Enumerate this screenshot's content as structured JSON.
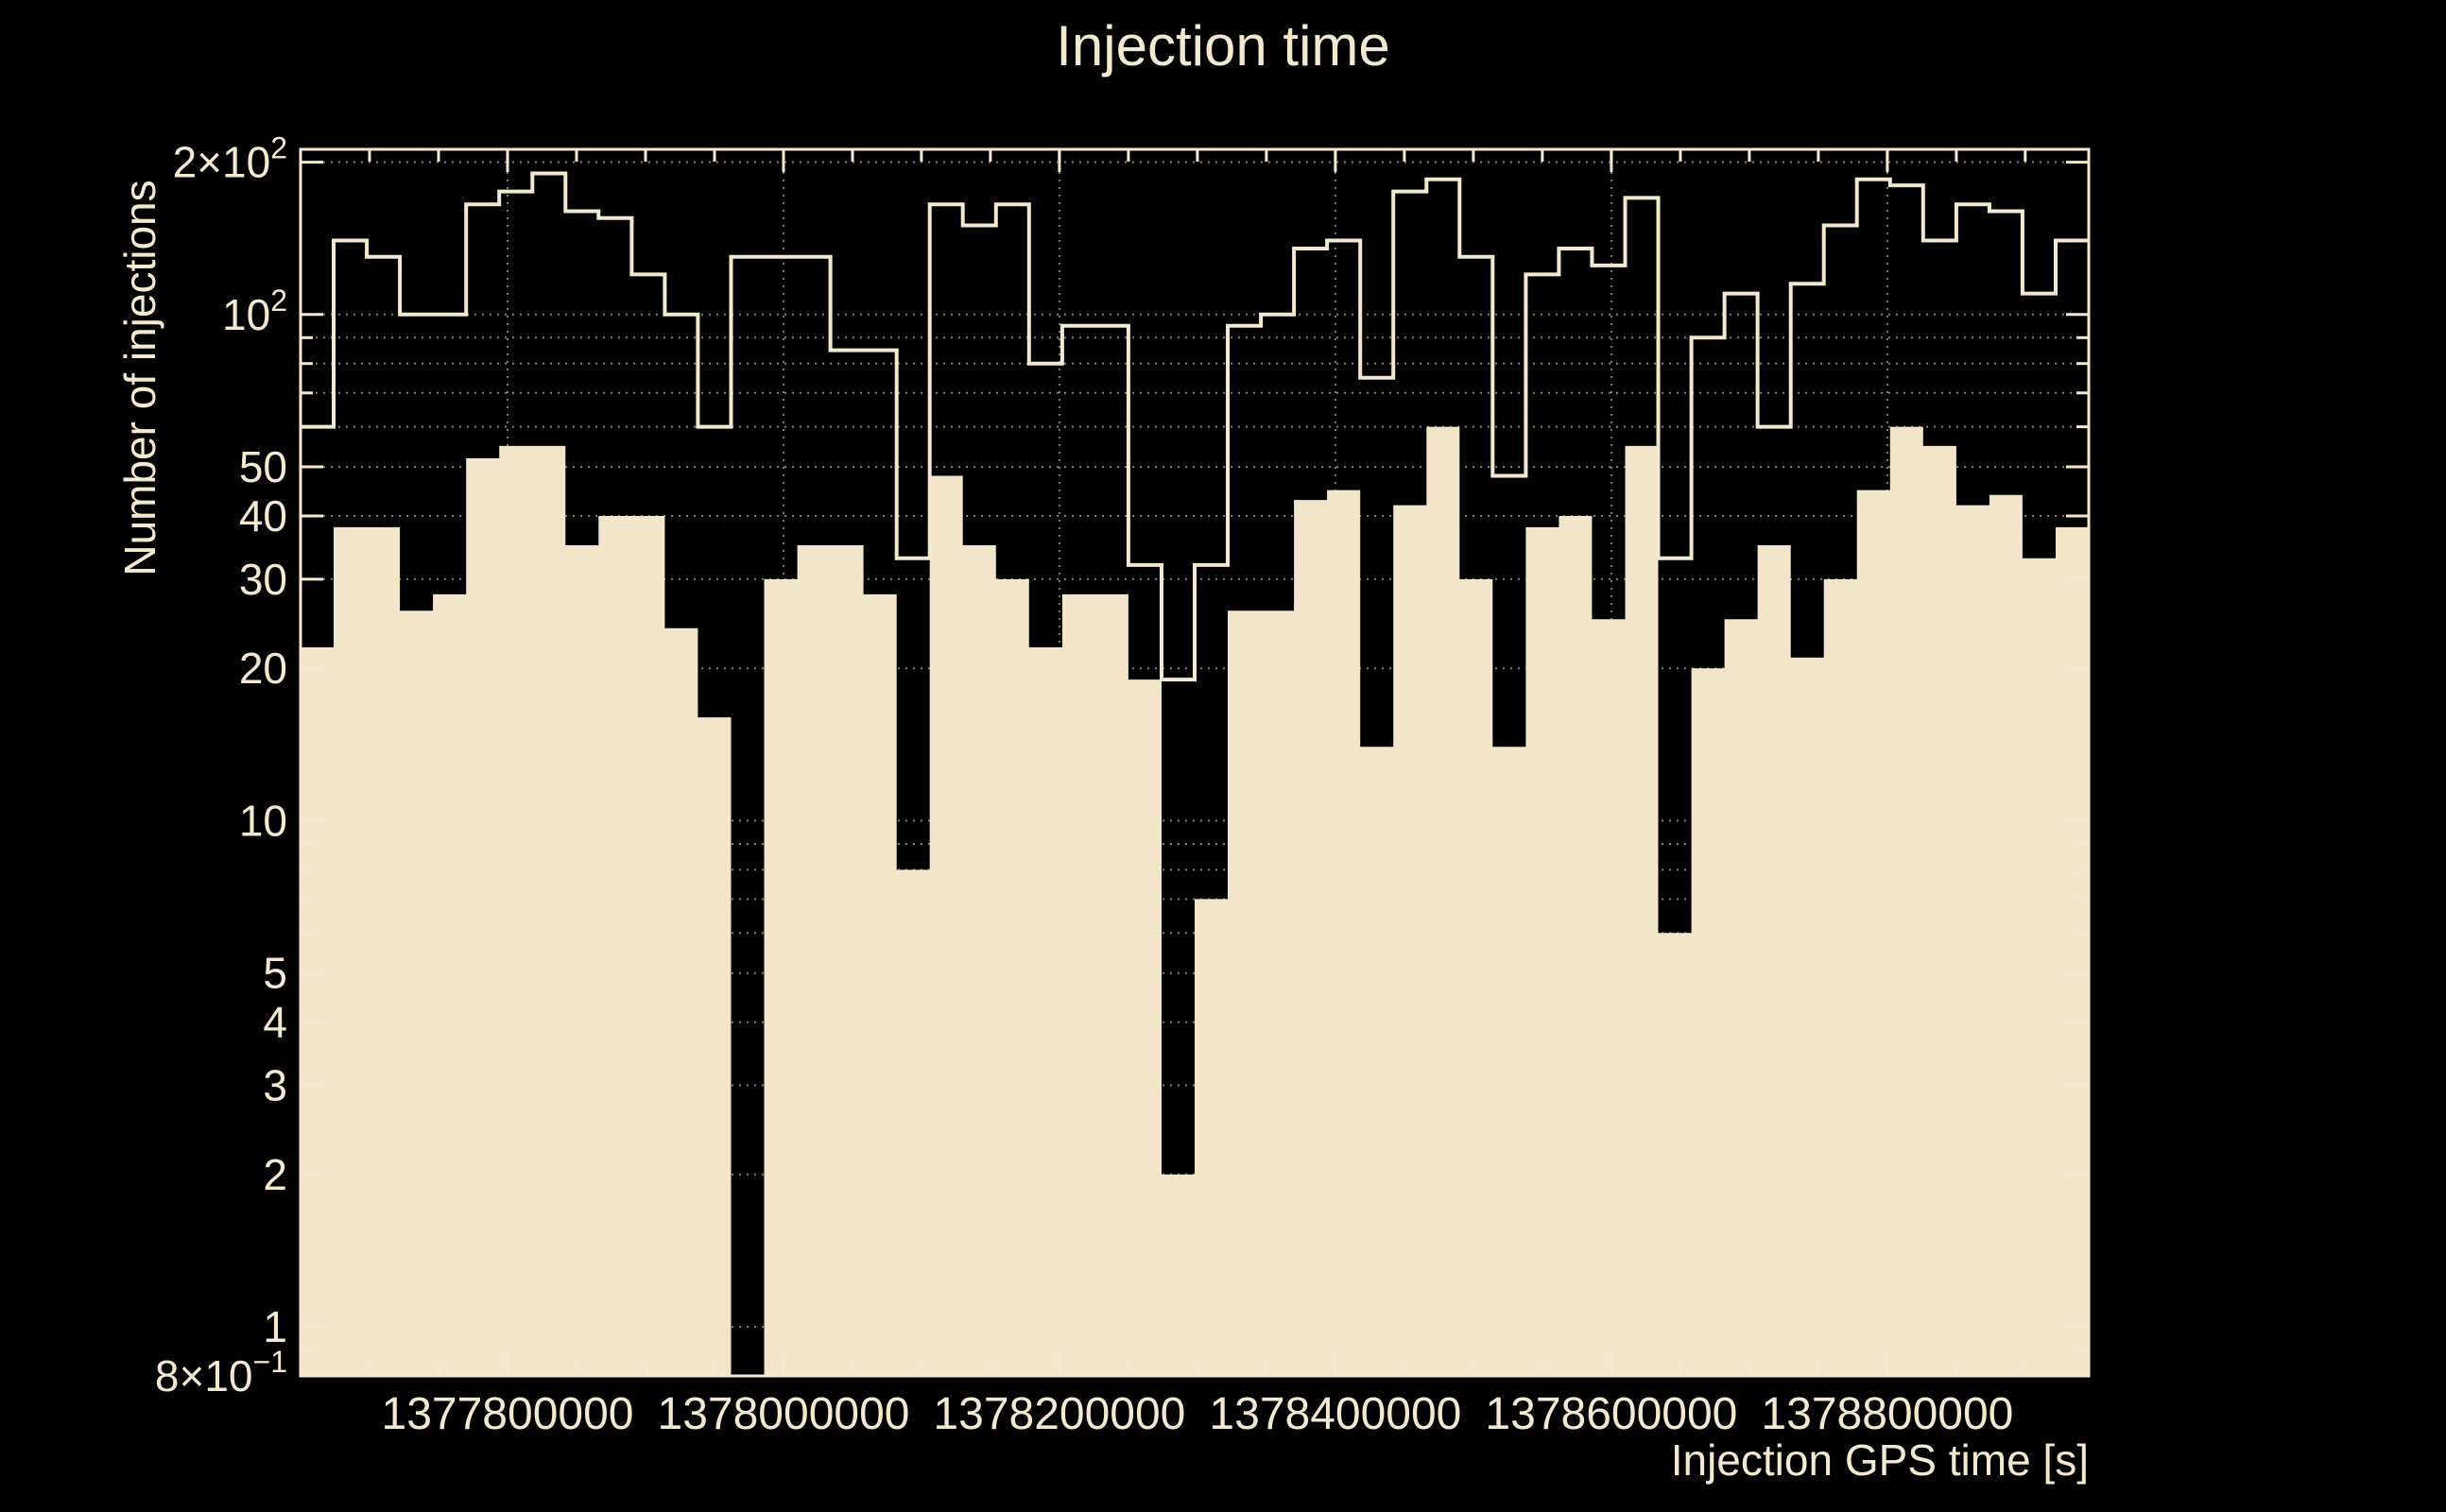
{
  "chart": {
    "title": "Injection time",
    "xlabel": "Injection GPS time [s]",
    "ylabel": "Number of injections"
  },
  "chart_data": {
    "type": "bar",
    "subtype": "step-histogram-log-y",
    "title": "Injection time",
    "xlabel": "Injection GPS time [s]",
    "ylabel": "Number of injections",
    "x_min": 1377650000,
    "bin_width": 24000,
    "n_bins": 54,
    "ylim": [
      0.8,
      212
    ],
    "grid": "on",
    "legend": "none",
    "x_ticks": [
      {
        "v": 1377800000,
        "label": "1377800000"
      },
      {
        "v": 1378000000,
        "label": "1378000000"
      },
      {
        "v": 1378200000,
        "label": "1378200000"
      },
      {
        "v": 1378400000,
        "label": "1378400000"
      },
      {
        "v": 1378600000,
        "label": "1378600000"
      },
      {
        "v": 1378800000,
        "label": "1378800000"
      }
    ],
    "x_minor_step": 50000,
    "y_ticks": [
      {
        "v": 0.8,
        "label": "8×10^−1"
      },
      {
        "v": 1,
        "label": "1"
      },
      {
        "v": 2,
        "label": "2"
      },
      {
        "v": 3,
        "label": "3"
      },
      {
        "v": 4,
        "label": "4"
      },
      {
        "v": 5,
        "label": "5"
      },
      {
        "v": 10,
        "label": "10"
      },
      {
        "v": 20,
        "label": "20"
      },
      {
        "v": 30,
        "label": "30"
      },
      {
        "v": 40,
        "label": "40"
      },
      {
        "v": 50,
        "label": "50"
      },
      {
        "v": 100,
        "label": "10^2"
      },
      {
        "v": 200,
        "label": "2×10^2"
      }
    ],
    "y_minor": [
      0.9,
      6,
      7,
      8,
      9,
      60,
      70,
      80,
      90
    ],
    "y_grid": [
      1,
      2,
      3,
      4,
      5,
      6,
      7,
      8,
      9,
      10,
      20,
      30,
      40,
      50,
      60,
      70,
      80,
      90,
      100,
      200
    ],
    "series": [
      {
        "name": "injections-outline",
        "style": "step-outline",
        "values": [
          60,
          140,
          130,
          100,
          100,
          165,
          175,
          190,
          160,
          155,
          120,
          100,
          60,
          130,
          130,
          130,
          85,
          85,
          33,
          165,
          150,
          165,
          80,
          95,
          95,
          32,
          19,
          32,
          95,
          100,
          135,
          140,
          75,
          175,
          185,
          130,
          48,
          120,
          135,
          125,
          170,
          33,
          90,
          110,
          60,
          115,
          150,
          185,
          180,
          140,
          165,
          160,
          110,
          140
        ]
      },
      {
        "name": "injections-filled",
        "style": "filled",
        "values": [
          22,
          38,
          38,
          26,
          28,
          52,
          55,
          55,
          35,
          40,
          40,
          24,
          16,
          0,
          30,
          35,
          35,
          28,
          8,
          48,
          35,
          30,
          22,
          28,
          28,
          19,
          2,
          7,
          26,
          26,
          43,
          45,
          14,
          42,
          60,
          30,
          14,
          38,
          40,
          25,
          55,
          6,
          20,
          25,
          35,
          21,
          30,
          45,
          60,
          55,
          42,
          44,
          33,
          38
        ]
      }
    ],
    "colors": {
      "background": "#000000",
      "foreground": "#f2e9d0",
      "fill": "#f1e6c9",
      "grid": "#87816f"
    }
  }
}
